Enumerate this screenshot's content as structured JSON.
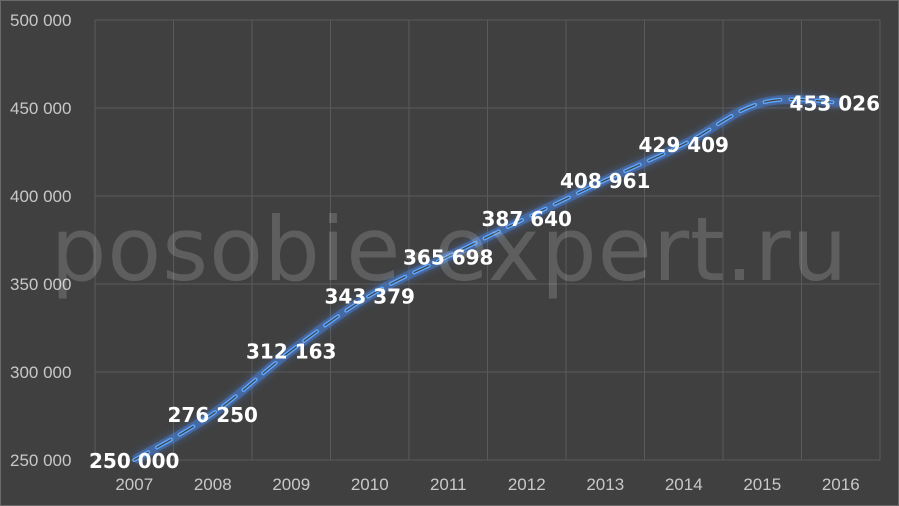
{
  "watermark": "posobie-expert.ru",
  "colors": {
    "background": "#404040",
    "line": "#5ea8ff",
    "glow": "#4a90ff",
    "grid": "#5a5a5a",
    "labels": "#ffffff"
  },
  "chart_data": {
    "type": "line",
    "title": "",
    "xlabel": "",
    "ylabel": "",
    "categories": [
      "2007",
      "2008",
      "2009",
      "2010",
      "2011",
      "2012",
      "2013",
      "2014",
      "2015",
      "2016"
    ],
    "series": [
      {
        "values": [
          250000,
          276250,
          312163,
          343379,
          365698,
          387640,
          408961,
          429409,
          453026,
          453026
        ]
      }
    ],
    "data_labels": [
      "250 000",
      "276 250",
      "312 163",
      "343 379",
      "365 698",
      "387 640",
      "408 961",
      "429 409",
      "",
      "453 026"
    ],
    "y_ticks": [
      "250 000",
      "300 000",
      "350 000",
      "400 000",
      "450 000",
      "500 000"
    ],
    "ylim": [
      250000,
      500000
    ],
    "grid": true,
    "line_style": "dashed with glow",
    "legend": "none"
  }
}
